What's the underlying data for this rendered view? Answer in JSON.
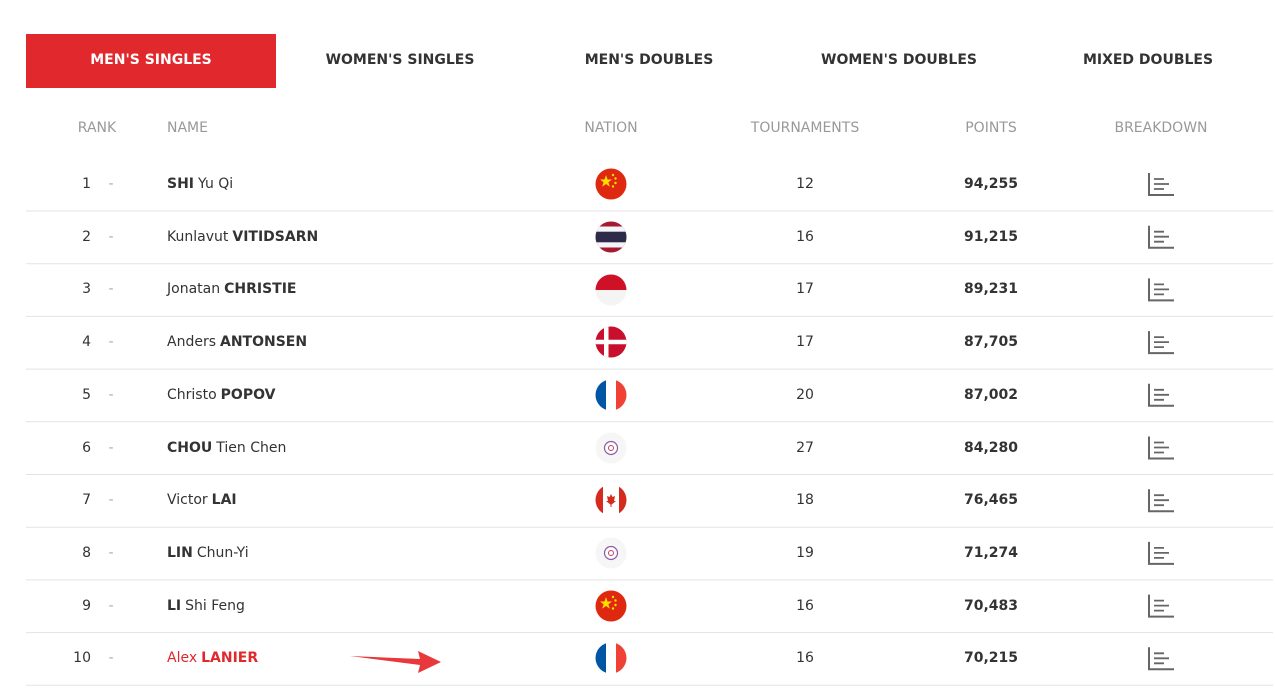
{
  "tabs": [
    "MEN'S SINGLES",
    "WOMEN'S SINGLES",
    "MEN'S DOUBLES",
    "WOMEN'S DOUBLES",
    "MIXED DOUBLES"
  ],
  "columns": [
    "RANK",
    "NAME",
    "NATION",
    "TOURNAMENTS",
    "POINTS",
    "BREAKDOWN"
  ],
  "rows": [
    {
      "rank": 1,
      "change": "-",
      "name": [
        {
          "text": "SHI",
          "bold": true
        },
        {
          "text": "Yu Qi",
          "bold": false
        }
      ],
      "tournaments": 12,
      "points": "94,255"
    },
    {
      "rank": 2,
      "change": "-",
      "name": [
        {
          "text": "Kunlavut",
          "bold": false
        },
        {
          "text": "VITIDSARN",
          "bold": true
        }
      ],
      "tournaments": 16,
      "points": "91,215"
    },
    {
      "rank": 3,
      "change": "-",
      "name": [
        {
          "text": "Jonatan",
          "bold": false
        },
        {
          "text": "CHRISTIE",
          "bold": true
        }
      ],
      "tournaments": 17,
      "points": "89,231"
    },
    {
      "rank": 4,
      "change": "-",
      "name": [
        {
          "text": "Anders",
          "bold": false
        },
        {
          "text": "ANTONSEN",
          "bold": true
        }
      ],
      "tournaments": 17,
      "points": "87,705"
    },
    {
      "rank": 5,
      "change": "-",
      "name": [
        {
          "text": "Christo",
          "bold": false
        },
        {
          "text": "POPOV",
          "bold": true
        }
      ],
      "tournaments": 20,
      "points": "87,002"
    },
    {
      "rank": 6,
      "change": "-",
      "name": [
        {
          "text": "CHOU",
          "bold": true
        },
        {
          "text": "Tien Chen",
          "bold": false
        }
      ],
      "tournaments": 27,
      "points": "84,280"
    },
    {
      "rank": 7,
      "change": "-",
      "name": [
        {
          "text": "Victor",
          "bold": false
        },
        {
          "text": "LAI",
          "bold": true
        }
      ],
      "tournaments": 18,
      "points": "76,465"
    },
    {
      "rank": 8,
      "change": "-",
      "name": [
        {
          "text": "LIN",
          "bold": true
        },
        {
          "text": "Chun-Yi",
          "bold": false
        }
      ],
      "tournaments": 19,
      "points": "71,274"
    },
    {
      "rank": 9,
      "change": "-",
      "name": [
        {
          "text": "LI",
          "bold": true
        },
        {
          "text": "Shi Feng",
          "bold": false
        }
      ],
      "tournaments": 16,
      "points": "70,483"
    },
    {
      "rank": 10,
      "change": "-",
      "name": [
        {
          "text": "Alex",
          "bold": false
        },
        {
          "text": "LANIER",
          "bold": true
        }
      ],
      "tournaments": 16,
      "points": "70,215"
    }
  ]
}
